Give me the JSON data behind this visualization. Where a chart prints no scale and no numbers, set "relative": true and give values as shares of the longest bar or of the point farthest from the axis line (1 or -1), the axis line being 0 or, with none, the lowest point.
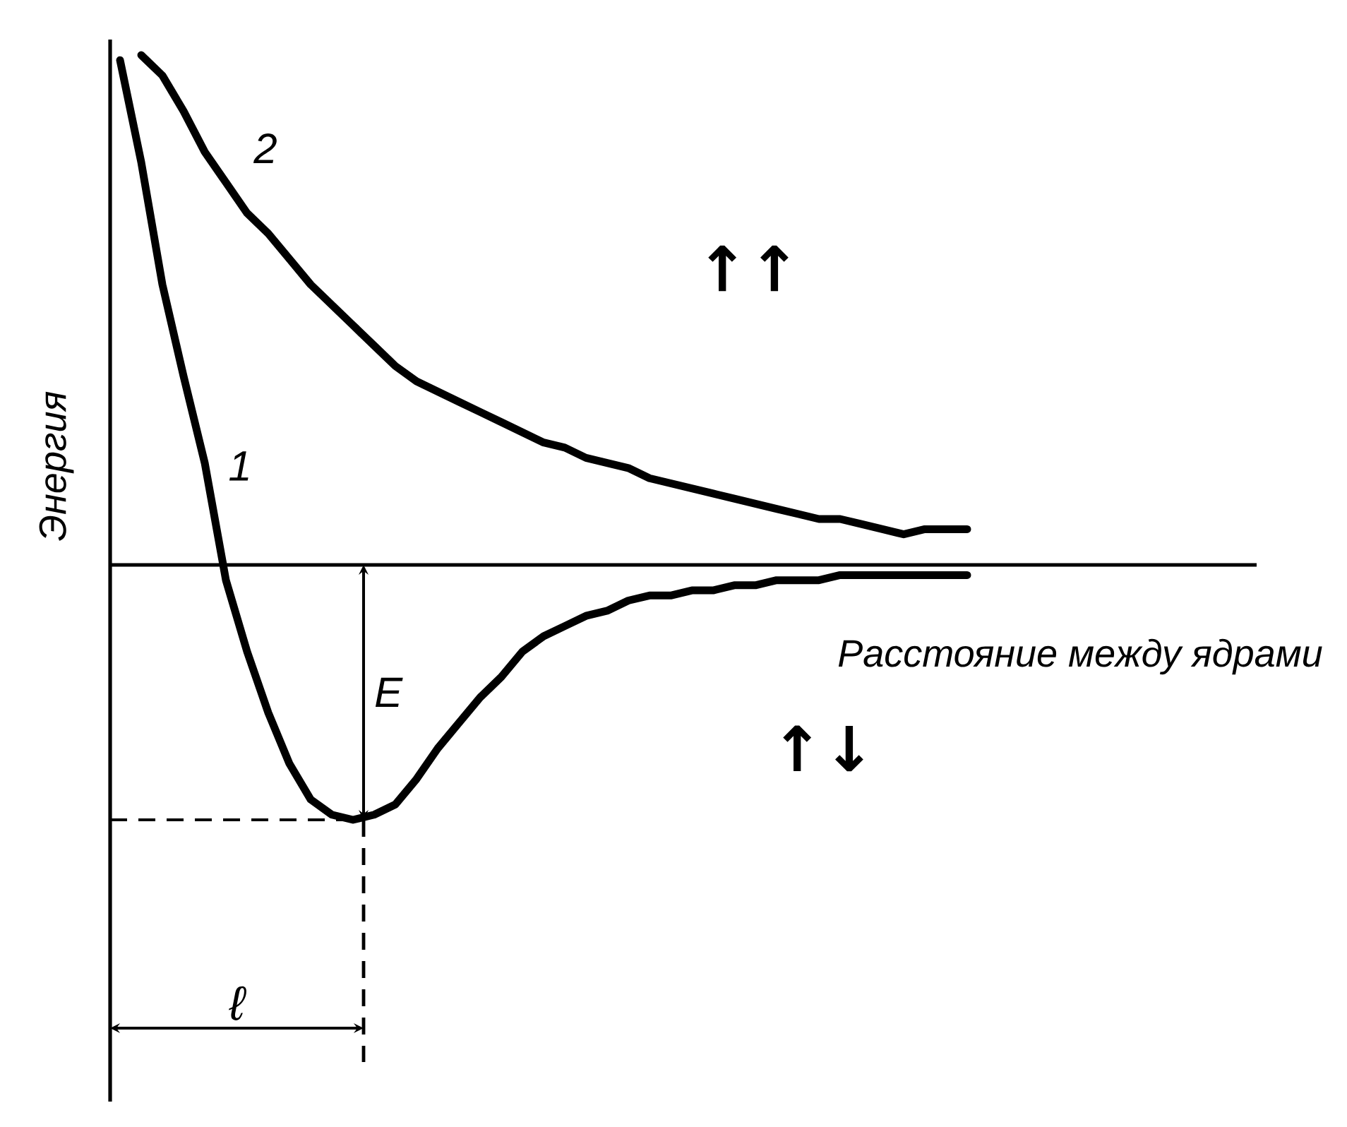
{
  "chart_data": {
    "type": "line",
    "relative": true,
    "xlabel": "Расстояние между ядрами",
    "ylabel": "Энергия",
    "categories": [
      null,
      null,
      null,
      null,
      null,
      null,
      null,
      null,
      null,
      null,
      null,
      null,
      null,
      null,
      null,
      null,
      null,
      null,
      null,
      null,
      null,
      null,
      null,
      null,
      null,
      null,
      null,
      null,
      null,
      null,
      null,
      null,
      null,
      null,
      null,
      null,
      null,
      null,
      null,
      null,
      null
    ],
    "series": [
      {
        "name": "1",
        "color": "#000000",
        "values": [
          0.99,
          0.79,
          0.55,
          0.37,
          0.2,
          -0.03,
          -0.17,
          -0.29,
          -0.39,
          -0.46,
          -0.49,
          -0.5,
          -0.49,
          -0.47,
          -0.42,
          -0.36,
          -0.31,
          -0.26,
          -0.22,
          -0.17,
          -0.14,
          -0.12,
          -0.1,
          -0.09,
          -0.07,
          -0.06,
          -0.06,
          -0.05,
          -0.05,
          -0.04,
          -0.04,
          -0.03,
          -0.03,
          -0.03,
          -0.02,
          -0.02,
          -0.02,
          -0.02,
          -0.02,
          -0.02,
          -0.02
        ]
      },
      {
        "name": "2",
        "color": "#000000",
        "values": [
          null,
          1.0,
          0.96,
          0.89,
          0.81,
          0.75,
          0.69,
          0.65,
          0.6,
          0.55,
          0.51,
          0.47,
          0.43,
          0.39,
          0.36,
          0.34,
          0.32,
          0.3,
          0.28,
          0.26,
          0.24,
          0.23,
          0.21,
          0.2,
          0.19,
          0.17,
          0.16,
          0.15,
          0.14,
          0.13,
          0.12,
          0.11,
          0.1,
          0.09,
          0.09,
          0.08,
          0.07,
          0.06,
          0.07,
          0.07,
          0.07
        ]
      }
    ],
    "annotations": [
      "E",
      "ℓ",
      "↑↑",
      "↑↓"
    ]
  }
}
